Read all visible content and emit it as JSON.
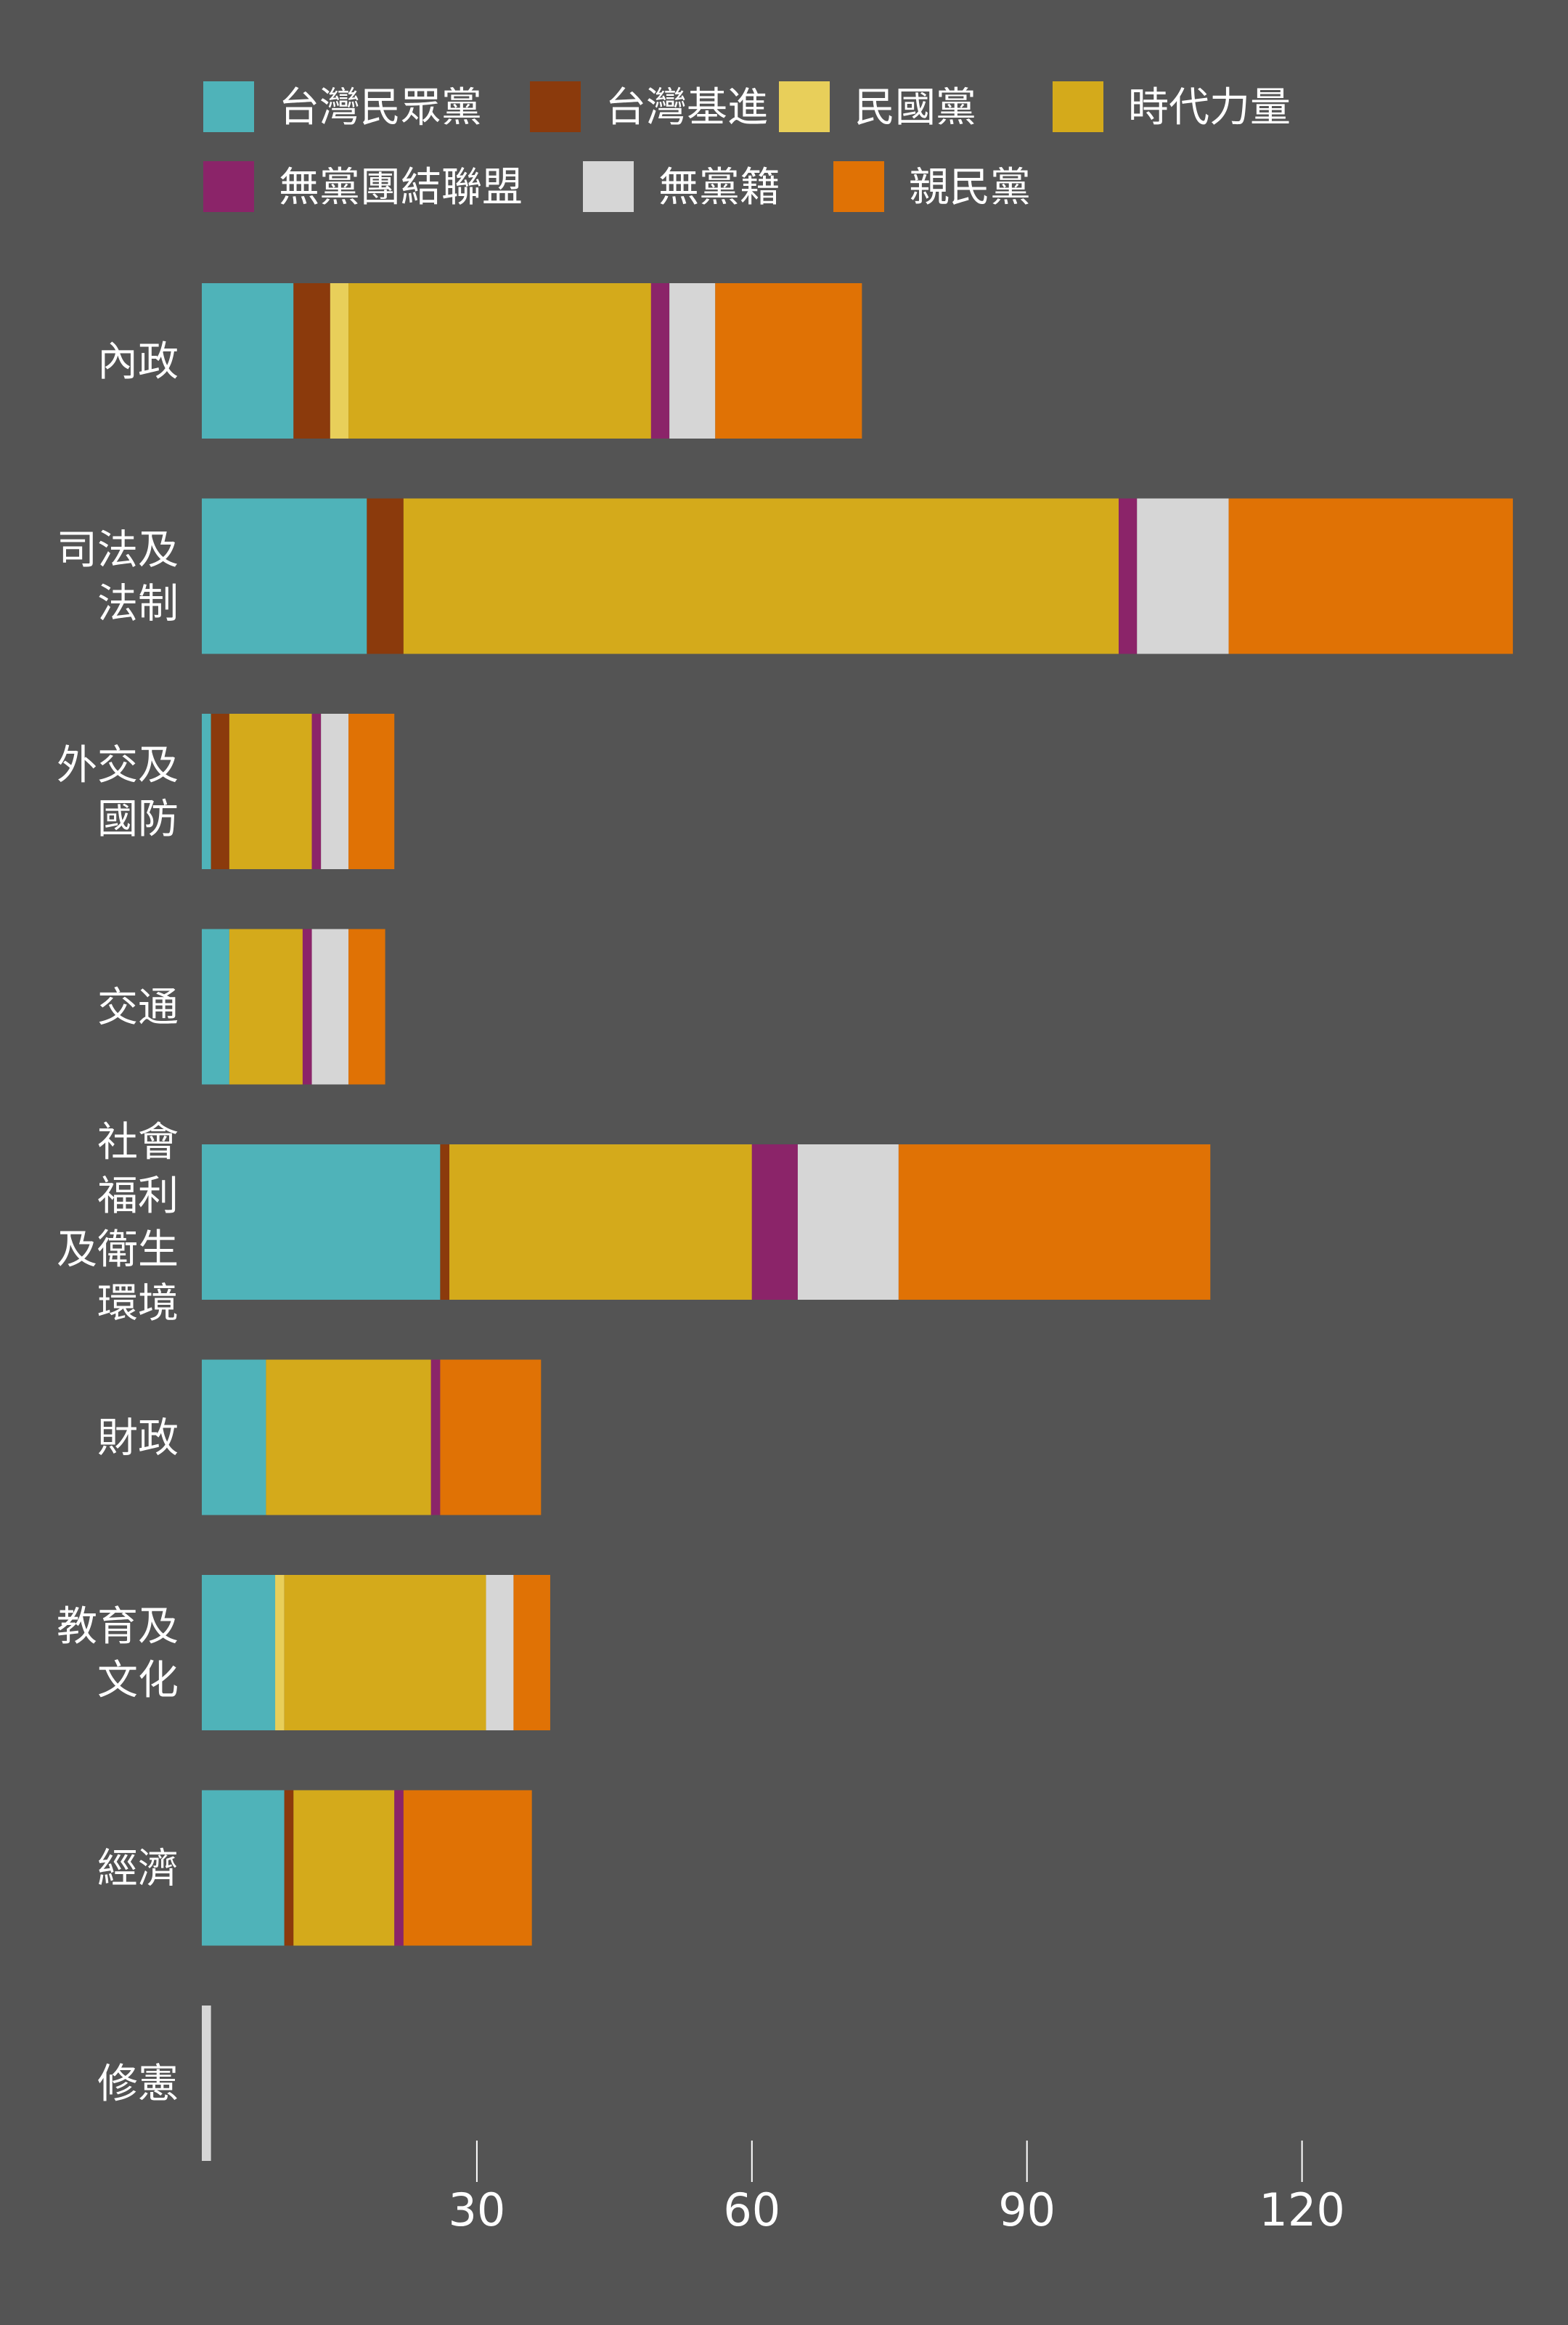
{
  "chart_data": {
    "type": "bar",
    "orientation": "horizontal",
    "stacked": true,
    "title": "",
    "xlabel": "",
    "ylabel": "",
    "xlim": [
      0,
      145
    ],
    "x_ticks": [
      30,
      60,
      90,
      120
    ],
    "legend_position": "top",
    "categories": [
      [
        "內政"
      ],
      [
        "司法及",
        "法制"
      ],
      [
        "外交及",
        "國防"
      ],
      [
        "交通"
      ],
      [
        "社會",
        "福利",
        "及衛生",
        "環境"
      ],
      [
        "財政"
      ],
      [
        "教育及",
        "文化"
      ],
      [
        "經濟"
      ],
      [
        "修憲"
      ]
    ],
    "series": [
      {
        "name": "台灣民眾黨",
        "color": "#4fb3b9",
        "values": [
          10,
          18,
          1,
          3,
          26,
          7,
          8,
          9,
          0
        ]
      },
      {
        "name": "台灣基進",
        "color": "#8b3a0c",
        "values": [
          4,
          4,
          2,
          0,
          1,
          0,
          0,
          1,
          0
        ]
      },
      {
        "name": "民國黨",
        "color": "#e8cf5a",
        "values": [
          2,
          0,
          0,
          0,
          0,
          0,
          1,
          0,
          0
        ]
      },
      {
        "name": "時代力量",
        "color": "#d4aa1b",
        "values": [
          33,
          78,
          9,
          8,
          33,
          18,
          22,
          11,
          0
        ]
      },
      {
        "name": "無黨團結聯盟",
        "color": "#8b2469",
        "values": [
          2,
          2,
          1,
          1,
          5,
          1,
          0,
          1,
          0
        ]
      },
      {
        "name": "無黨籍",
        "color": "#d6d6d6",
        "values": [
          5,
          10,
          3,
          4,
          11,
          0,
          3,
          0,
          1
        ]
      },
      {
        "name": "親民黨",
        "color": "#e07205",
        "values": [
          16,
          31,
          5,
          4,
          34,
          11,
          4,
          14,
          0
        ]
      }
    ]
  }
}
